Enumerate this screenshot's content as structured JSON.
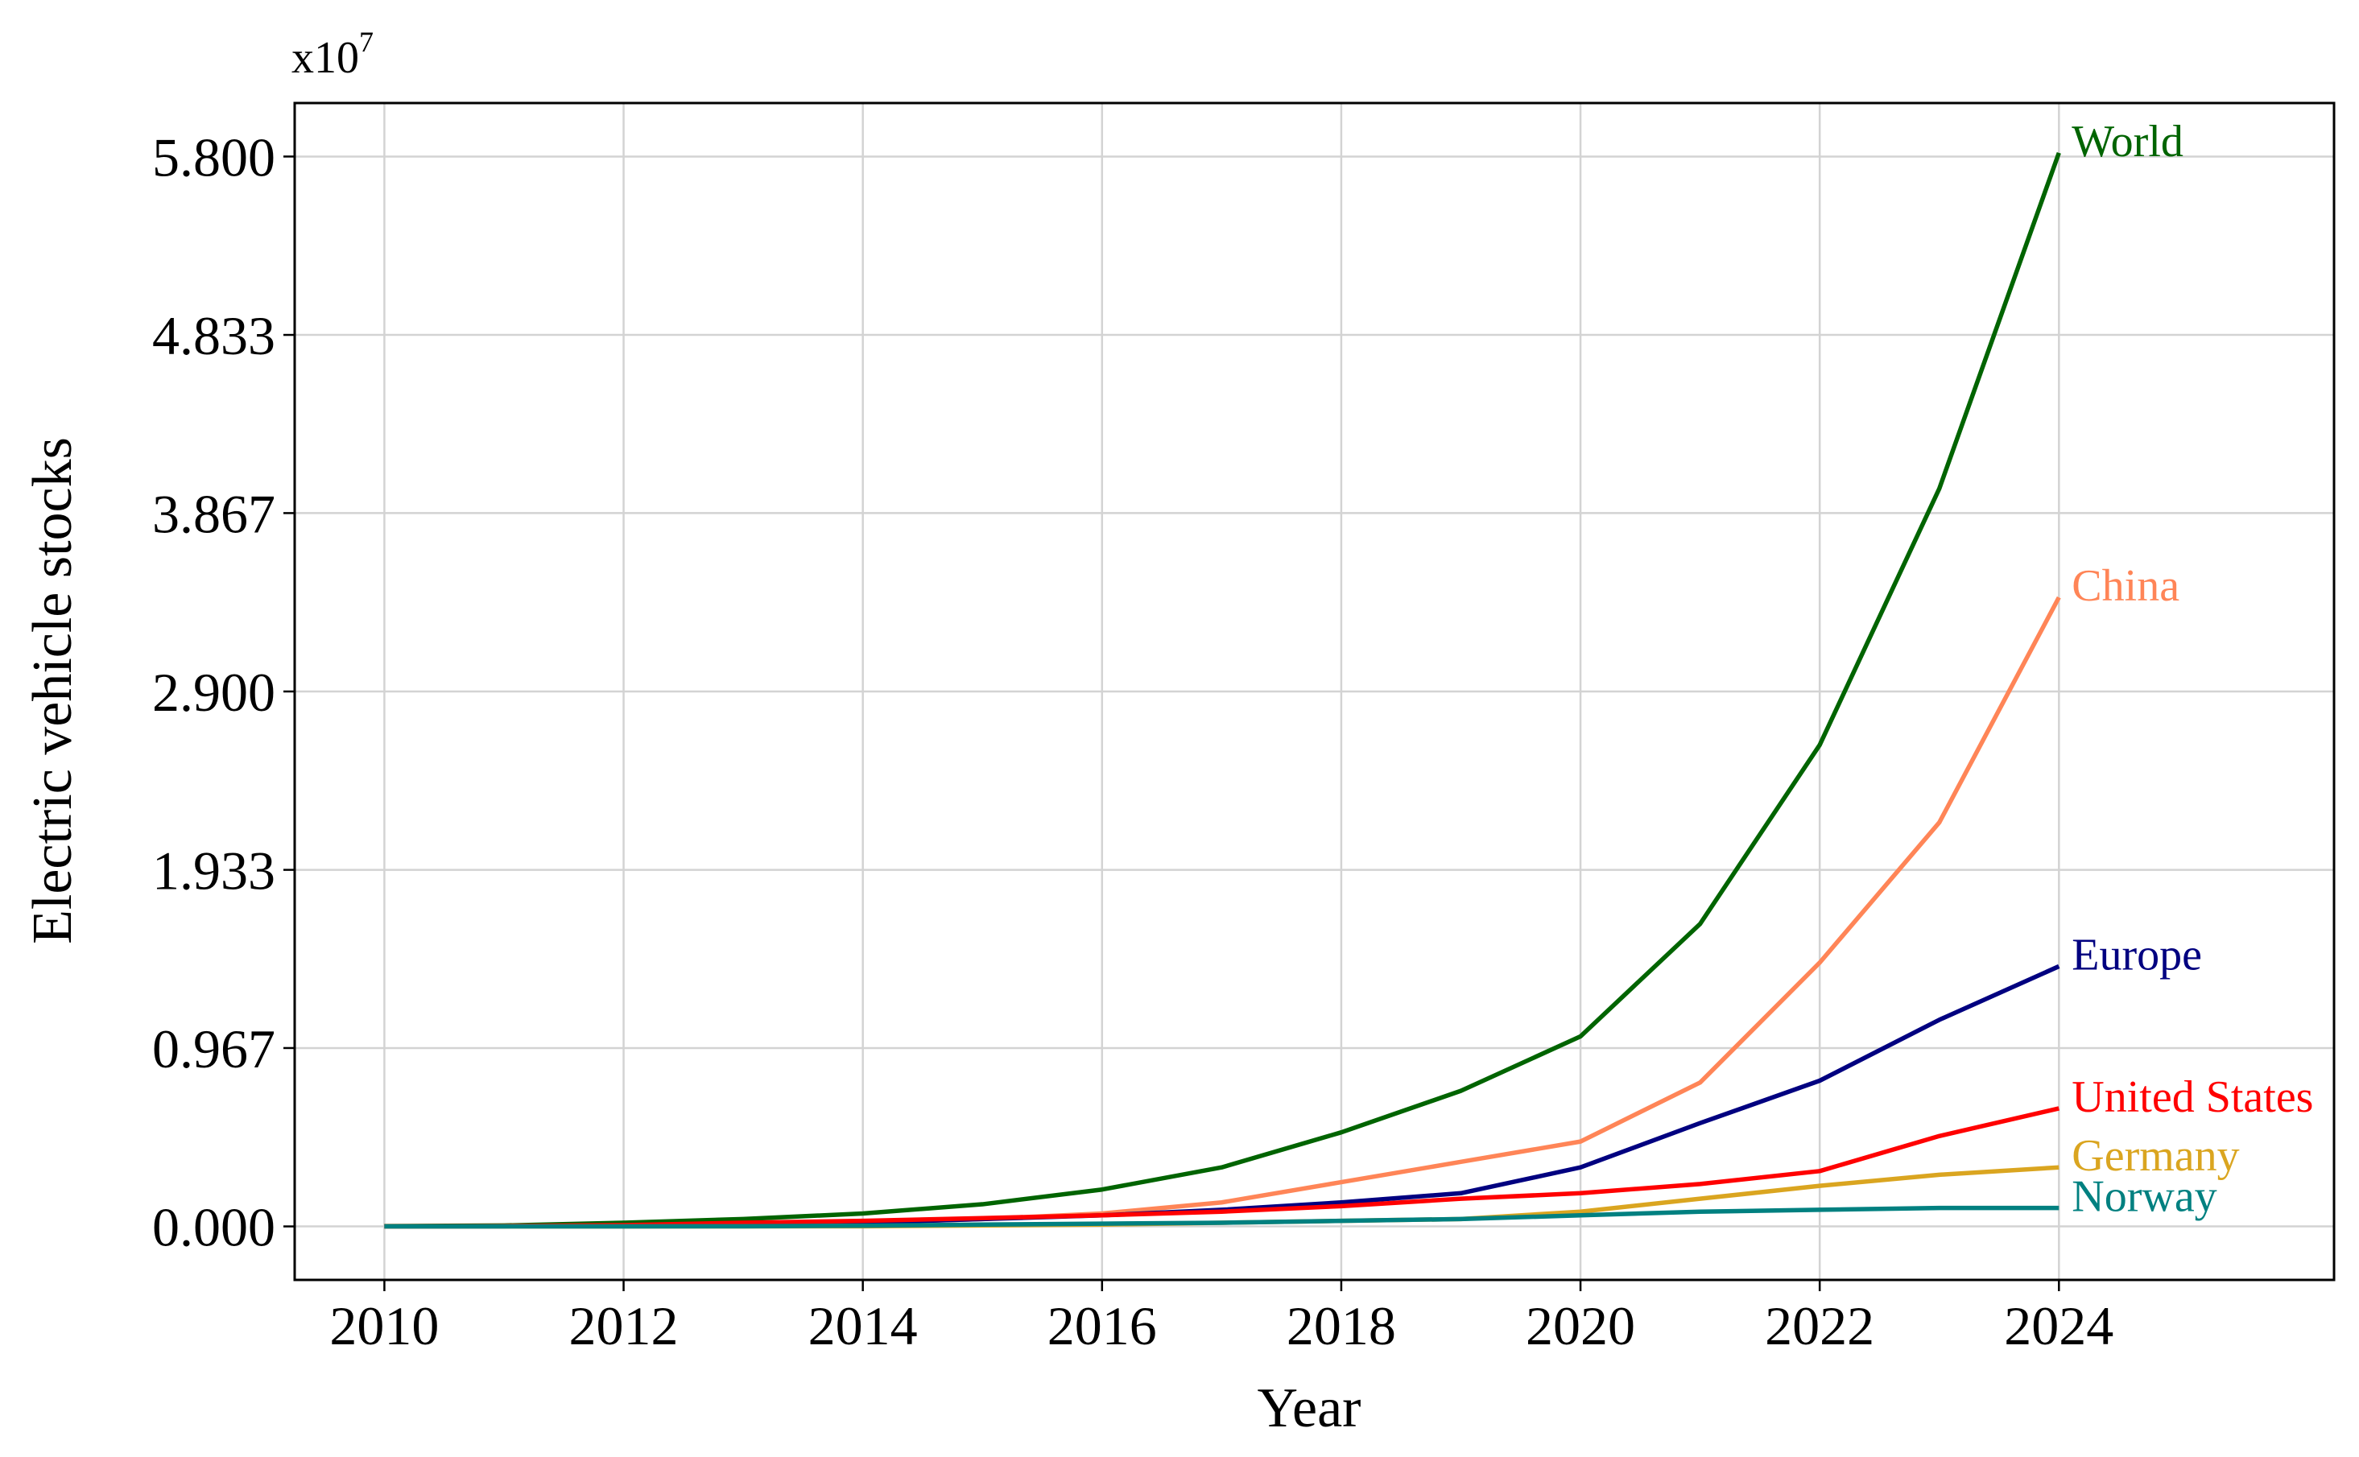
{
  "chart_data": {
    "type": "line",
    "x_label": "Year",
    "y_label": "Electric vehicle stocks",
    "y_offset_label": {
      "base": "x10",
      "exponent": "7"
    },
    "x": [
      2010,
      2011,
      2012,
      2013,
      2014,
      2015,
      2016,
      2017,
      2018,
      2019,
      2020,
      2021,
      2022,
      2023,
      2024
    ],
    "series": [
      {
        "name": "World",
        "color": "#006400",
        "values": [
          0.002,
          0.005,
          0.02,
          0.04,
          0.07,
          0.12,
          0.2,
          0.32,
          0.51,
          0.735,
          1.03,
          1.64,
          2.61,
          4.0,
          5.82
        ]
      },
      {
        "name": "China",
        "color": "#ff8557",
        "values": [
          0,
          0.002,
          0.005,
          0.01,
          0.02,
          0.04,
          0.07,
          0.13,
          0.24,
          0.35,
          0.46,
          0.78,
          1.43,
          2.19,
          3.41
        ]
      },
      {
        "name": "Europe",
        "color": "#000080",
        "values": [
          0,
          0.001,
          0.003,
          0.01,
          0.02,
          0.04,
          0.06,
          0.09,
          0.13,
          0.18,
          0.32,
          0.56,
          0.79,
          1.12,
          1.41
        ]
      },
      {
        "name": "United States",
        "color": "#ff0000",
        "values": [
          0.001,
          0.002,
          0.007,
          0.02,
          0.03,
          0.045,
          0.06,
          0.08,
          0.11,
          0.15,
          0.18,
          0.23,
          0.3,
          0.49,
          0.64
        ]
      },
      {
        "name": "Germany",
        "color": "#daa520",
        "values": [
          0,
          0,
          0,
          0,
          0.001,
          0.005,
          0.01,
          0.02,
          0.03,
          0.04,
          0.08,
          0.15,
          0.22,
          0.28,
          0.32
        ]
      },
      {
        "name": "Norway",
        "color": "#008080",
        "values": [
          0,
          0,
          0,
          0.001,
          0.004,
          0.01,
          0.015,
          0.02,
          0.03,
          0.04,
          0.06,
          0.08,
          0.09,
          0.1,
          0.1
        ]
      }
    ],
    "xlim": [
      2009.25,
      2026.3
    ],
    "ylim": [
      -0.29,
      6.09
    ],
    "xticks": [
      2010,
      2012,
      2014,
      2016,
      2018,
      2020,
      2022,
      2024
    ],
    "yticks": [
      {
        "value": 0,
        "label": "0.000"
      },
      0.967,
      1.933,
      {
        "value": 2.9,
        "label": "2.900"
      },
      3.867,
      4.833,
      {
        "value": 5.8,
        "label": "5.800"
      }
    ],
    "grid": true
  }
}
